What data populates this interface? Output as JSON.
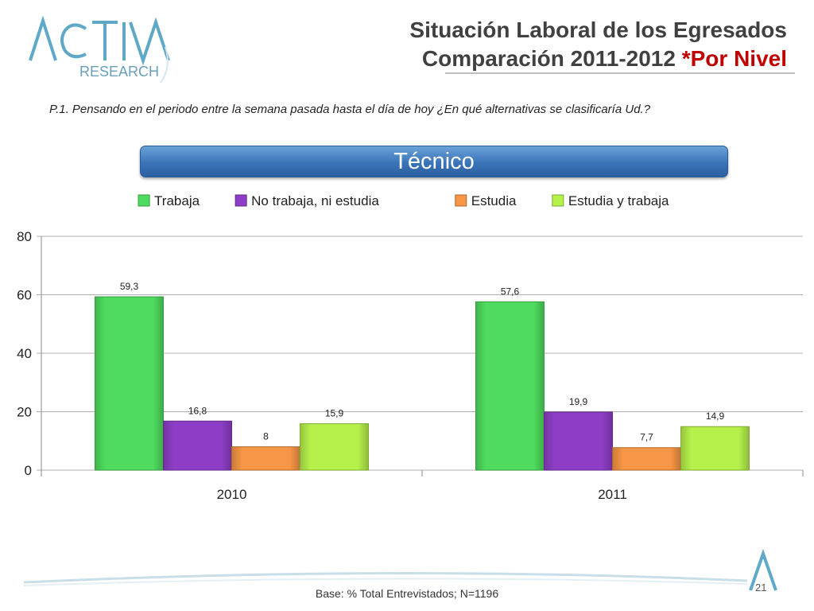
{
  "header": {
    "logo_text": "ACTIVA RESEARCH",
    "title_line1": "Situación Laboral de los Egresados",
    "title_line2_main": "Comparación 2011-2012 ",
    "title_line2_accent": "*Por Nivel"
  },
  "question": "P.1.  Pensando en el periodo entre la semana pasada hasta el día de hoy ¿En qué alternativas se clasificaría Ud.?",
  "banner": "Técnico",
  "footer": {
    "note": "Base: % Total Entrevistados; N=1196",
    "page_number": "21"
  },
  "chart_data": {
    "type": "bar",
    "categories": [
      "2010",
      "2011"
    ],
    "series": [
      {
        "name": "Trabaja",
        "values": [
          59.3,
          57.6
        ],
        "labels": [
          "59,3",
          "57,6"
        ],
        "color": "#4fdc5e"
      },
      {
        "name": "No trabaja, ni estudia",
        "values": [
          16.8,
          19.9
        ],
        "labels": [
          "16,8",
          "19,9"
        ],
        "color": "#8e3ec6"
      },
      {
        "name": "Estudia",
        "values": [
          8,
          7.7
        ],
        "labels": [
          "8",
          "7,7"
        ],
        "color": "#f79646"
      },
      {
        "name": "Estudia y trabaja",
        "values": [
          15.9,
          14.9
        ],
        "labels": [
          "15,9",
          "14,9"
        ],
        "color": "#b6f04a"
      }
    ],
    "ylim": [
      0,
      80
    ],
    "yticks": [
      0,
      20,
      40,
      60,
      80
    ],
    "grid": true,
    "legend": "top"
  }
}
